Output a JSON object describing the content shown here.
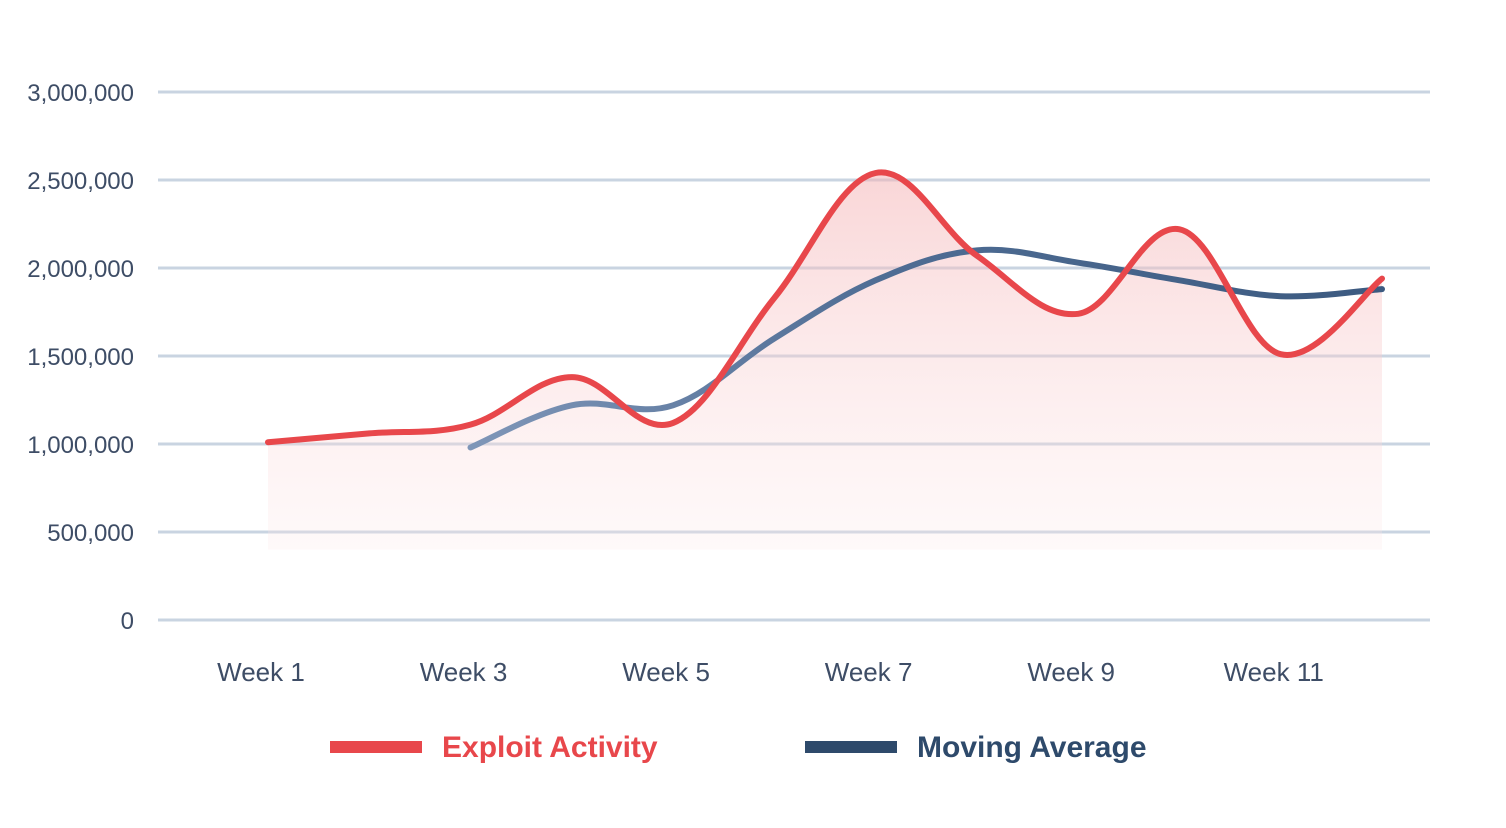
{
  "chart_data": {
    "type": "line",
    "title": "",
    "xlabel": "",
    "ylabel": "",
    "x": [
      1,
      2,
      3,
      4,
      5,
      6,
      7,
      8,
      9,
      10,
      11,
      12
    ],
    "x_tick_labels": [
      "Week 1",
      "Week 3",
      "Week 5",
      "Week 7",
      "Week 9",
      "Week 11"
    ],
    "x_tick_positions": [
      1,
      3,
      5,
      7,
      9,
      11
    ],
    "xlim": [
      1,
      12
    ],
    "ylim": [
      0,
      3000000
    ],
    "y_ticks": [
      0,
      500000,
      1000000,
      1500000,
      2000000,
      2500000,
      3000000
    ],
    "y_tick_labels": [
      "0",
      "500,000",
      "1,000,000",
      "1,500,000",
      "2,000,000",
      "2,500,000",
      "3,000,000"
    ],
    "grid": true,
    "legend": "bottom",
    "series": [
      {
        "name": "Exploit Activity",
        "color": "#e8474b",
        "fill": "area",
        "x": [
          1,
          2,
          3,
          4,
          5,
          6,
          7,
          8,
          9,
          10,
          11,
          12
        ],
        "values": [
          1010000,
          1060000,
          1110000,
          1380000,
          1120000,
          1830000,
          2540000,
          2070000,
          1740000,
          2220000,
          1510000,
          1940000
        ]
      },
      {
        "name": "Moving Average",
        "color": "#2e4a6b",
        "fill": "none",
        "x": [
          3,
          4,
          5,
          6,
          7,
          8,
          9,
          10,
          11,
          12
        ],
        "values": [
          980000,
          1220000,
          1220000,
          1600000,
          1930000,
          2100000,
          2030000,
          1930000,
          1840000,
          1880000
        ]
      }
    ]
  }
}
